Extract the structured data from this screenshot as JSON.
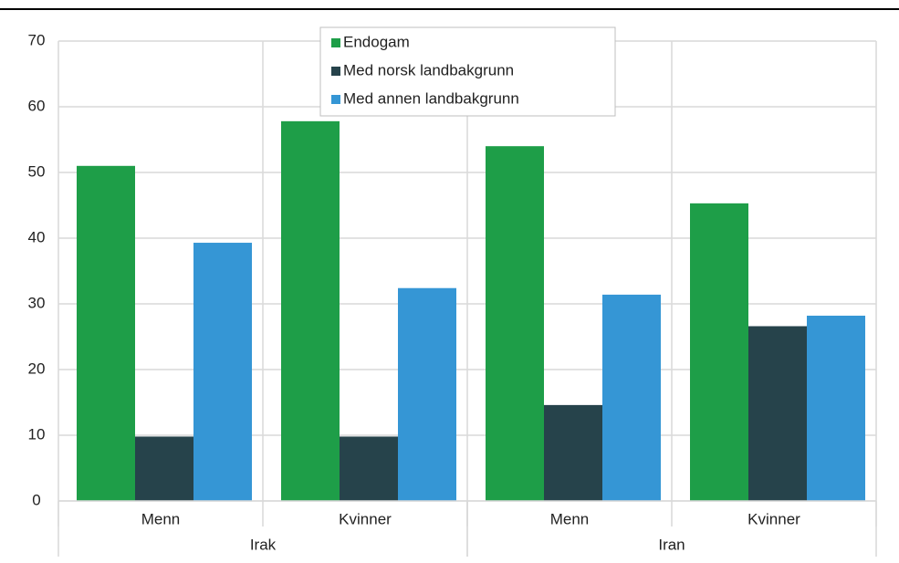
{
  "chart_data": {
    "type": "bar",
    "categories": [
      "Menn",
      "Kvinner",
      "Menn",
      "Kvinner"
    ],
    "groups": [
      {
        "name": "Irak",
        "size": 2
      },
      {
        "name": "Iran",
        "size": 2
      }
    ],
    "series": [
      {
        "name": "Endogam",
        "color": "#1e9e48",
        "values": [
          51,
          57.8,
          54,
          45.3
        ]
      },
      {
        "name": "Med norsk landbakgrunn",
        "color": "#26434b",
        "values": [
          9.8,
          9.8,
          14.6,
          26.6
        ]
      },
      {
        "name": "Med annen landbakgrunn",
        "color": "#3596d5",
        "values": [
          39.3,
          32.4,
          31.4,
          28.2
        ]
      }
    ],
    "ylim": [
      0,
      70
    ],
    "yticks": [
      0,
      10,
      20,
      30,
      40,
      50,
      60,
      70
    ],
    "grid": true,
    "legend": "top"
  }
}
